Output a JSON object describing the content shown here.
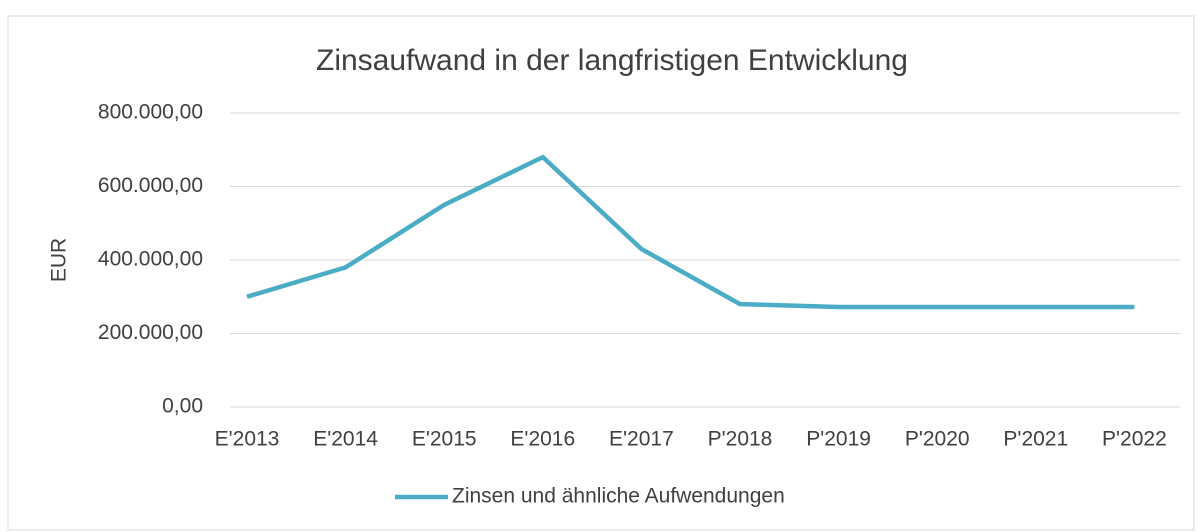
{
  "chart_data": {
    "type": "line",
    "title": "Zinsaufwand in der langfristigen Entwicklung",
    "y_label": "EUR",
    "categories": [
      "E'2013",
      "E'2014",
      "E'2015",
      "E'2016",
      "E'2017",
      "P'2018",
      "P'2019",
      "P'2020",
      "P'2021",
      "P'2022"
    ],
    "series": [
      {
        "name": "Zinsen und ähnliche Aufwendungen",
        "color": "#4bacc6",
        "values": [
          300000,
          380000,
          550000,
          680000,
          430000,
          280000,
          272000,
          272000,
          272000,
          272000
        ]
      }
    ],
    "ylim": [
      0,
      800000
    ],
    "yticks": [
      {
        "value": 0,
        "label": "0,00"
      },
      {
        "value": 200000,
        "label": "200.000,00"
      },
      {
        "value": 400000,
        "label": "400.000,00"
      },
      {
        "value": 600000,
        "label": "600.000,00"
      },
      {
        "value": 800000,
        "label": "800.000,00"
      }
    ],
    "grid": true,
    "legend": "bottom"
  }
}
